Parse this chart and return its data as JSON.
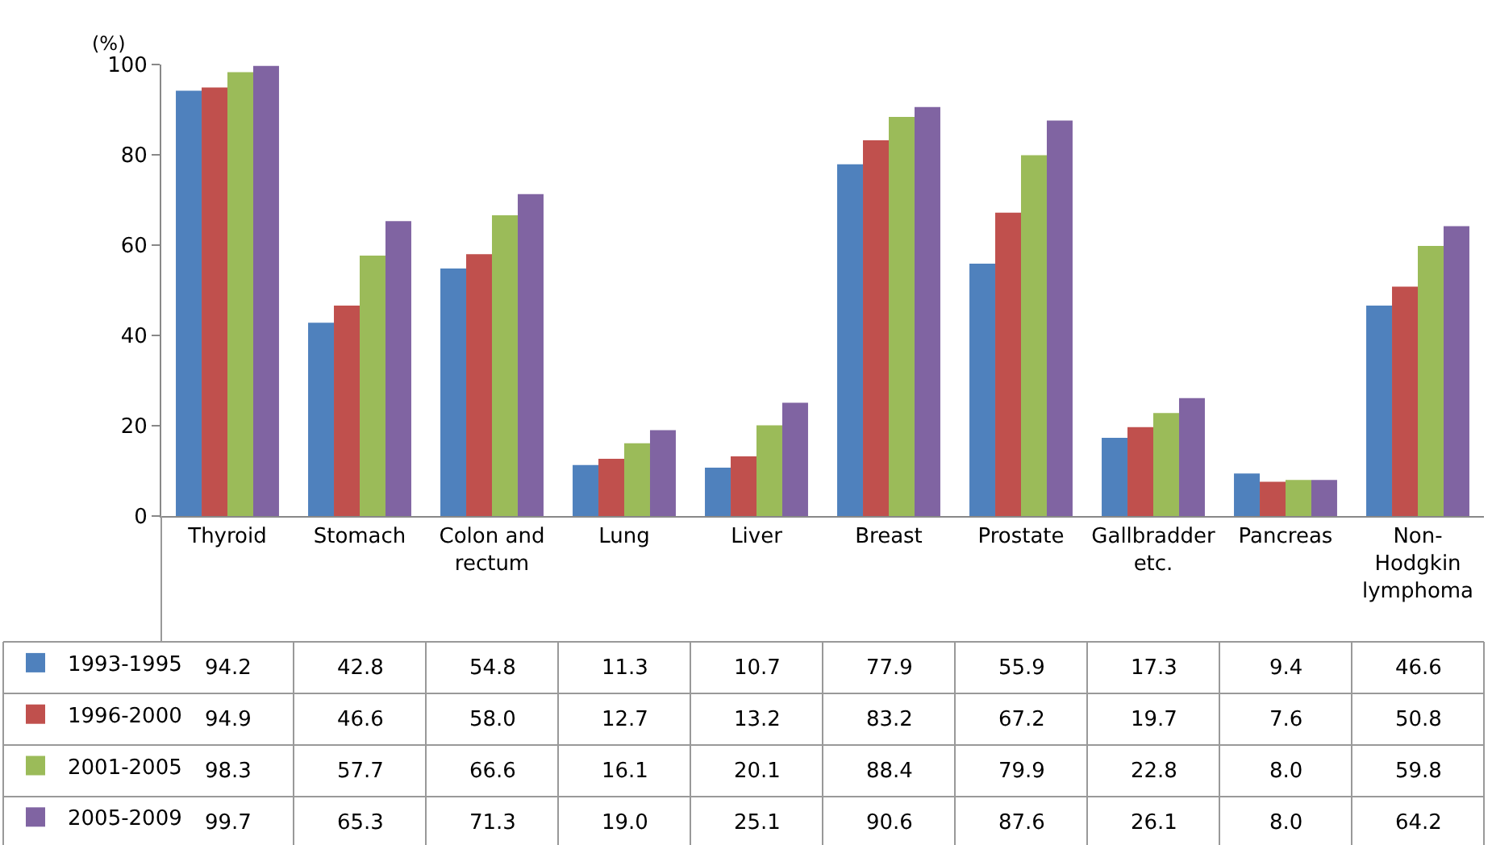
{
  "chart_data": {
    "type": "bar",
    "ylabel": "(%)",
    "categories": [
      "Thyroid",
      "Stomach",
      "Colon and rectum",
      "Lung",
      "Liver",
      "Breast",
      "Prostate",
      "Gallbradder etc.",
      "Pancreas",
      "Non-Hodgkin lymphoma"
    ],
    "series": [
      {
        "name": "1993-1995",
        "color": "#4f81bd",
        "values": [
          94.2,
          42.8,
          54.8,
          11.3,
          10.7,
          77.9,
          55.9,
          17.3,
          9.4,
          46.6
        ],
        "value_labels": [
          "94.2",
          "42.8",
          "54.8",
          "11.3",
          "10.7",
          "77.9",
          "55.9",
          "17.3",
          "9.4",
          "46.6"
        ]
      },
      {
        "name": "1996-2000",
        "color": "#c0504d",
        "values": [
          94.9,
          46.6,
          58.0,
          12.7,
          13.2,
          83.2,
          67.2,
          19.7,
          7.6,
          50.8
        ],
        "value_labels": [
          "94.9",
          "46.6",
          "58.0",
          "12.7",
          "13.2",
          "83.2",
          "67.2",
          "19.7",
          "7.6",
          "50.8"
        ]
      },
      {
        "name": "2001-2005",
        "color": "#9bbb59",
        "values": [
          98.3,
          57.7,
          66.6,
          16.1,
          20.1,
          88.4,
          79.9,
          22.8,
          8.0,
          59.8
        ],
        "value_labels": [
          "98.3",
          "57.7",
          "66.6",
          "16.1",
          "20.1",
          "88.4",
          "79.9",
          "22.8",
          "8.0",
          "59.8"
        ]
      },
      {
        "name": "2005-2009",
        "color": "#8064a2",
        "values": [
          99.7,
          65.3,
          71.3,
          19.0,
          25.1,
          90.6,
          87.6,
          26.1,
          8.0,
          64.2
        ],
        "value_labels": [
          "99.7",
          "65.3",
          "71.3",
          "19.0",
          "25.1",
          "90.6",
          "87.6",
          "26.1",
          "8.0",
          "64.2"
        ]
      }
    ],
    "ylim": [
      0,
      100
    ],
    "yticks": [
      0,
      20,
      40,
      60,
      80,
      100
    ],
    "grid": false,
    "legend": "bottom left"
  }
}
